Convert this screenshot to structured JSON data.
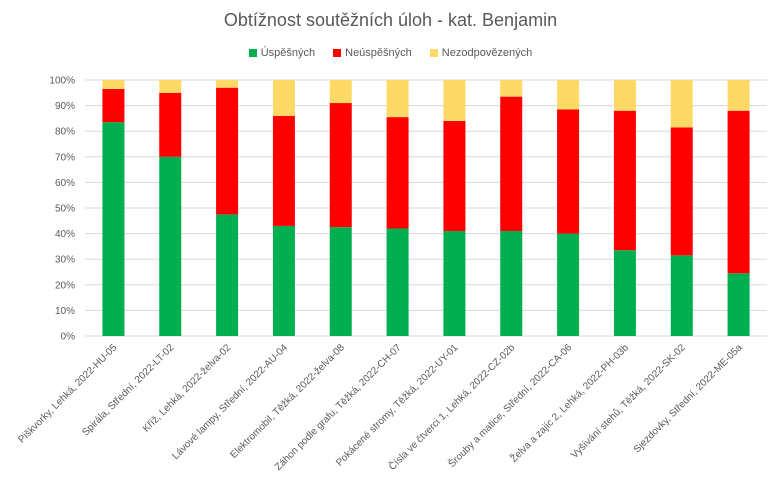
{
  "chart_data": {
    "type": "bar",
    "stacked": true,
    "percent": true,
    "title": "Obtížnost soutěžních úloh - kat. Benjamin",
    "xlabel": "",
    "ylabel": "",
    "ylim": [
      0,
      100
    ],
    "yticks": [
      "0%",
      "10%",
      "20%",
      "30%",
      "40%",
      "50%",
      "60%",
      "70%",
      "80%",
      "90%",
      "100%"
    ],
    "grid": true,
    "legend_position": "top",
    "categories": [
      "Piškvorky, Lehká, 2022-HU-05",
      "Spirála, Střední, 2022-LT-02",
      "Kříž, Lehká, 2022-želva-02",
      "Lávové lampy, Střední, 2022-AU-04",
      "Elektromobil, Těžká, 2022-želva-08",
      "Záhon podle grafu, Těžká, 2022-CH-07",
      "Pokácené stromy, Těžká, 2022-UY-01",
      "Čísla ve čtverci 1, Lehká, 2022-CZ-02b",
      "Šrouby a matice, Střední, 2022-CA-06",
      "Želva a zajíc 2, Lehká, 2022-PH-03b",
      "Vyšívání stehů, Těžká, 2022-SK-02",
      "Sjezdovky, Střední, 2022-ME-05a"
    ],
    "series": [
      {
        "name": "Úspěšných",
        "color": "#00b050",
        "values": [
          83.5,
          70,
          47.5,
          43,
          42.5,
          42,
          41,
          41,
          40,
          33.5,
          31.5,
          24.5
        ]
      },
      {
        "name": "Neúspěšných",
        "color": "#ff0000",
        "values": [
          13,
          25,
          49.5,
          43,
          48.5,
          43.5,
          43,
          52.5,
          48.5,
          54.5,
          50,
          63.5
        ]
      },
      {
        "name": "Nezodpovězených",
        "color": "#ffd966",
        "values": [
          3.5,
          5,
          3,
          14,
          9,
          14.5,
          16,
          6.5,
          11.5,
          12,
          18.5,
          12
        ]
      }
    ]
  }
}
